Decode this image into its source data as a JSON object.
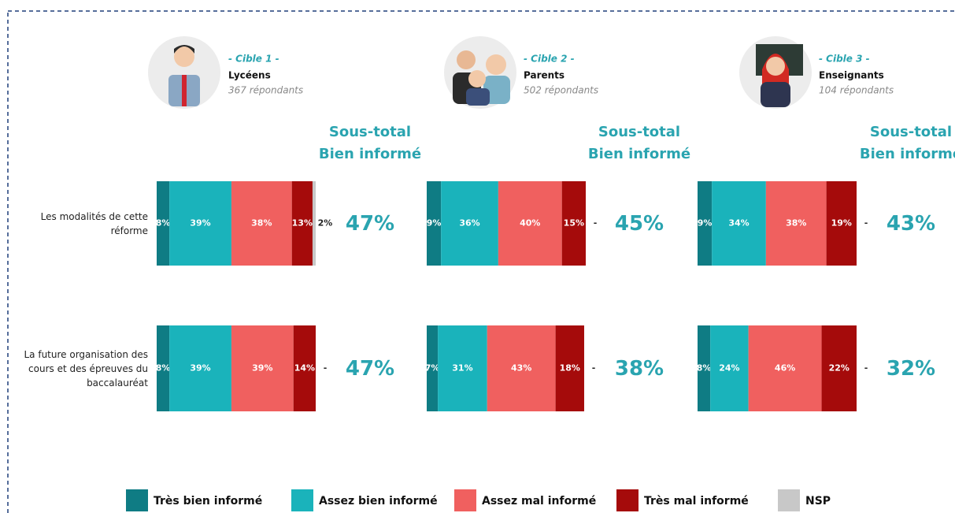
{
  "chart_data": {
    "type": "stacked-bar",
    "orientation": "horizontal",
    "xlim": [
      0,
      100
    ],
    "categories": [
      "Les modalités de cette réforme",
      "La future organisation des cours et des épreuves du baccalauréat"
    ],
    "series": [
      {
        "name": "Très bien informé",
        "color": "#0f7c84"
      },
      {
        "name": "Assez bien informé",
        "color": "#1ab3bb"
      },
      {
        "name": "Assez mal informé",
        "color": "#f0605f"
      },
      {
        "name": "Très mal informé",
        "color": "#a50b0b"
      },
      {
        "name": "NSP",
        "color": "#c8c8c8"
      }
    ],
    "panels": [
      {
        "cible": "- Cible 1 -",
        "title": "Lycéens",
        "subtitle": "367 répondants",
        "subtotal_header": [
          "Sous-total",
          "Bien informé"
        ],
        "values": [
          [
            8,
            39,
            38,
            13,
            2
          ],
          [
            8,
            39,
            39,
            14,
            null
          ]
        ],
        "value_labels": [
          [
            "8%",
            "39%",
            "38%",
            "13%",
            "2%"
          ],
          [
            "8%",
            "39%",
            "39%",
            "14%",
            "-"
          ]
        ],
        "subtotals": [
          47,
          47
        ],
        "subtotal_labels": [
          "47%",
          "47%"
        ]
      },
      {
        "cible": "- Cible 2 -",
        "title": "Parents",
        "subtitle": "502 répondants",
        "subtotal_header": [
          "Sous-total",
          "Bien informé"
        ],
        "values": [
          [
            9,
            36,
            40,
            15,
            null
          ],
          [
            7,
            31,
            43,
            18,
            null
          ]
        ],
        "value_labels": [
          [
            "9%",
            "36%",
            "40%",
            "15%",
            "-"
          ],
          [
            "7%",
            "31%",
            "43%",
            "18%",
            "-"
          ]
        ],
        "subtotals": [
          45,
          38
        ],
        "subtotal_labels": [
          "45%",
          "38%"
        ]
      },
      {
        "cible": "- Cible 3 -",
        "title": "Enseignants",
        "subtitle": "104 répondants",
        "subtotal_header": [
          "Sous-total",
          "Bien informé"
        ],
        "values": [
          [
            9,
            34,
            38,
            19,
            null
          ],
          [
            8,
            24,
            46,
            22,
            null
          ]
        ],
        "value_labels": [
          [
            "9%",
            "34%",
            "38%",
            "19%",
            "-"
          ],
          [
            "8%",
            "24%",
            "46%",
            "22%",
            "-"
          ]
        ],
        "subtotals": [
          43,
          32
        ],
        "subtotal_labels": [
          "43%",
          "32%"
        ]
      }
    ]
  }
}
